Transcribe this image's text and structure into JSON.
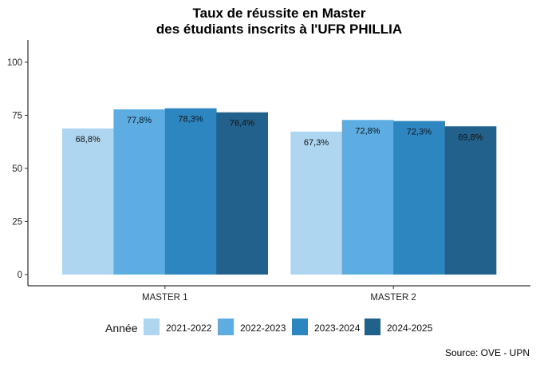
{
  "chart_data": {
    "type": "bar",
    "title": [
      "Taux de réussite en Master",
      "des étudiants inscrits à l'UFR PHILLIA"
    ],
    "xlabel": "",
    "ylabel": "",
    "categories": [
      "MASTER 1",
      "MASTER 2"
    ],
    "ylim": [
      -5.3,
      110.5
    ],
    "yticks": [
      0,
      25,
      50,
      75,
      100
    ],
    "grid": false,
    "legend": {
      "title": "Année",
      "position": "bottom"
    },
    "series": [
      {
        "name": "2021-2022",
        "color": "#AED6F1",
        "values": [
          68.8,
          67.3
        ],
        "labels": [
          "68,8%",
          "67,3%"
        ]
      },
      {
        "name": "2022-2023",
        "color": "#5DADE2",
        "values": [
          77.8,
          72.8
        ],
        "labels": [
          "77,8%",
          "72,8%"
        ]
      },
      {
        "name": "2023-2024",
        "color": "#2E86C1",
        "values": [
          78.3,
          72.3
        ],
        "labels": [
          "78,3%",
          "72,3%"
        ]
      },
      {
        "name": "2024-2025",
        "color": "#21618C",
        "values": [
          76.4,
          69.8
        ],
        "labels": [
          "76,4%",
          "69,8%"
        ]
      }
    ],
    "caption": "Source: OVE - UPN"
  }
}
